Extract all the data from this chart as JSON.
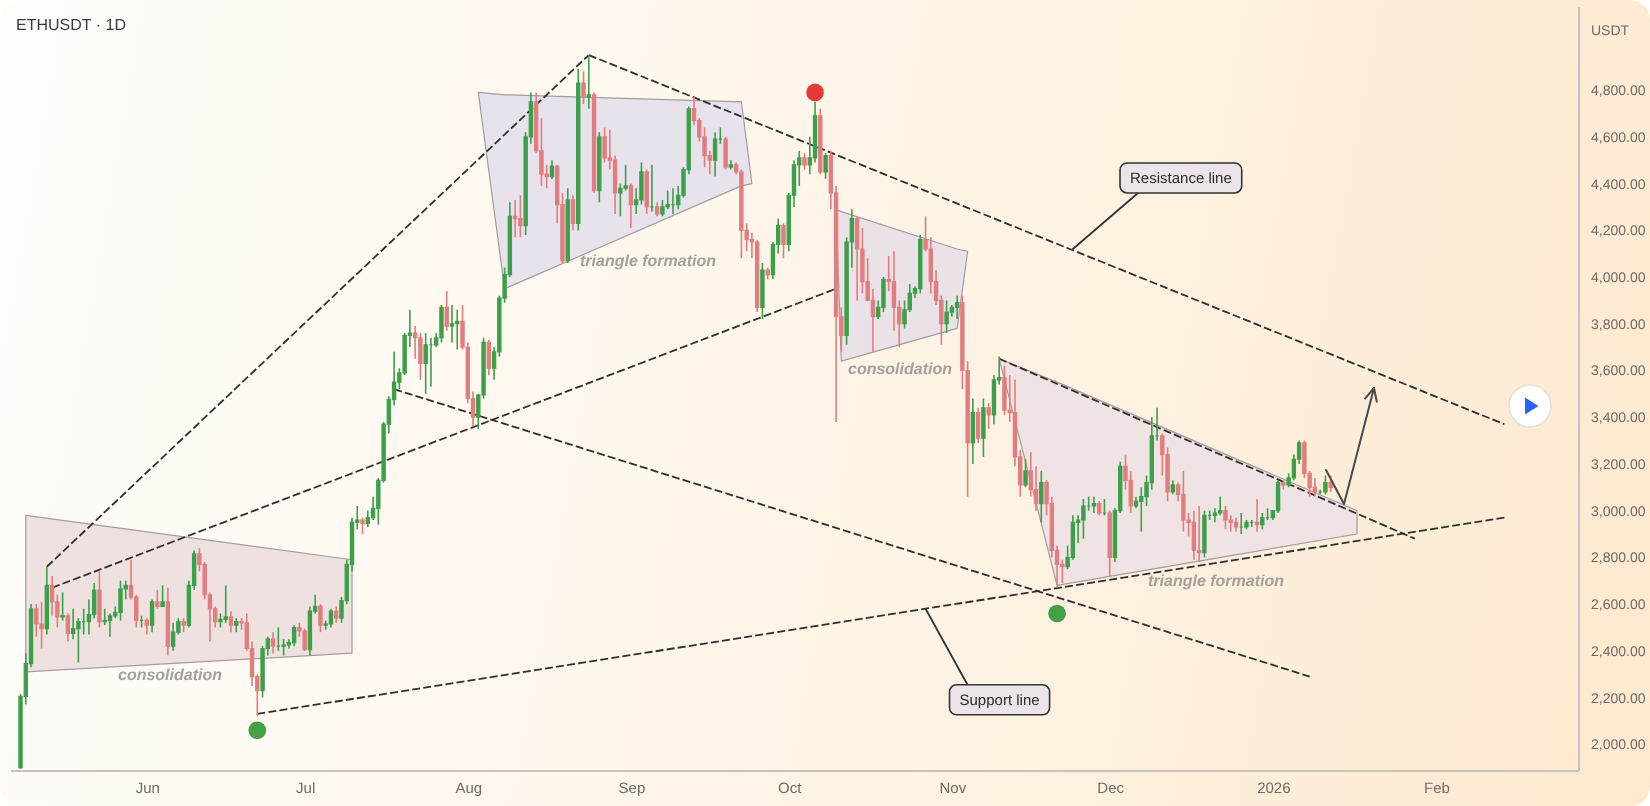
{
  "chart_data": {
    "type": "candlestick",
    "title": "ETHUSDT · 1D",
    "ylabel": "USDT",
    "x": [
      "2025-05-08",
      "2025-05-09",
      "2025-05-10",
      "2025-05-11",
      "2025-05-12",
      "2025-05-13",
      "2025-05-14",
      "2025-05-15",
      "2025-05-16",
      "2025-05-17",
      "2025-05-18",
      "2025-05-19",
      "2025-05-20",
      "2025-05-21",
      "2025-05-22",
      "2025-05-23",
      "2025-05-24",
      "2025-05-25",
      "2025-05-26",
      "2025-05-27",
      "2025-05-28",
      "2025-05-29",
      "2025-05-30",
      "2025-05-31",
      "2025-06-01",
      "2025-06-02",
      "2025-06-03",
      "2025-06-04",
      "2025-06-05",
      "2025-06-06",
      "2025-06-07",
      "2025-06-08",
      "2025-06-09",
      "2025-06-10",
      "2025-06-11",
      "2025-06-12",
      "2025-06-13",
      "2025-06-14",
      "2025-06-15",
      "2025-06-16",
      "2025-06-17",
      "2025-06-18",
      "2025-06-19",
      "2025-06-20",
      "2025-06-21",
      "2025-06-22",
      "2025-06-23",
      "2025-06-24",
      "2025-06-25",
      "2025-06-26",
      "2025-06-27",
      "2025-06-28",
      "2025-06-29",
      "2025-06-30",
      "2025-07-01",
      "2025-07-02",
      "2025-07-03",
      "2025-07-04",
      "2025-07-05",
      "2025-07-06",
      "2025-07-07",
      "2025-07-08",
      "2025-07-09",
      "2025-07-10",
      "2025-07-11",
      "2025-07-12",
      "2025-07-13",
      "2025-07-14",
      "2025-07-15",
      "2025-07-16",
      "2025-07-17",
      "2025-07-18",
      "2025-07-19",
      "2025-07-20",
      "2025-07-21",
      "2025-07-22",
      "2025-07-23",
      "2025-07-24",
      "2025-07-25",
      "2025-07-26",
      "2025-07-27",
      "2025-07-28",
      "2025-07-29",
      "2025-07-30",
      "2025-07-31",
      "2025-08-01",
      "2025-08-02",
      "2025-08-03",
      "2025-08-04",
      "2025-08-05",
      "2025-08-06",
      "2025-08-07",
      "2025-08-08",
      "2025-08-09",
      "2025-08-10",
      "2025-08-11",
      "2025-08-12",
      "2025-08-13",
      "2025-08-14",
      "2025-08-15",
      "2025-08-16",
      "2025-08-17",
      "2025-08-18",
      "2025-08-19",
      "2025-08-20",
      "2025-08-21",
      "2025-08-22",
      "2025-08-23",
      "2025-08-24",
      "2025-08-25",
      "2025-08-26",
      "2025-08-27",
      "2025-08-28",
      "2025-08-29",
      "2025-08-30",
      "2025-08-31",
      "2025-09-01",
      "2025-09-02",
      "2025-09-03",
      "2025-09-04",
      "2025-09-05",
      "2025-09-06",
      "2025-09-07",
      "2025-09-08",
      "2025-09-09",
      "2025-09-10",
      "2025-09-11",
      "2025-09-12",
      "2025-09-13",
      "2025-09-14",
      "2025-09-15",
      "2025-09-16",
      "2025-09-17",
      "2025-09-18",
      "2025-09-19",
      "2025-09-20",
      "2025-09-21",
      "2025-09-22",
      "2025-09-23",
      "2025-09-24",
      "2025-09-25",
      "2025-09-26",
      "2025-09-27",
      "2025-09-28",
      "2025-09-29",
      "2025-09-30",
      "2025-10-01",
      "2025-10-02",
      "2025-10-03",
      "2025-10-04",
      "2025-10-05",
      "2025-10-06",
      "2025-10-07",
      "2025-10-08",
      "2025-10-09",
      "2025-10-10",
      "2025-10-11",
      "2025-10-12",
      "2025-10-13",
      "2025-10-14",
      "2025-10-15",
      "2025-10-16",
      "2025-10-17",
      "2025-10-18",
      "2025-10-19",
      "2025-10-20",
      "2025-10-21",
      "2025-10-22",
      "2025-10-23",
      "2025-10-24",
      "2025-10-25",
      "2025-10-26",
      "2025-10-27",
      "2025-10-28",
      "2025-10-29",
      "2025-10-30",
      "2025-10-31",
      "2025-11-01",
      "2025-11-02",
      "2025-11-03",
      "2025-11-04",
      "2025-11-05",
      "2025-11-06",
      "2025-11-07",
      "2025-11-08",
      "2025-11-09",
      "2025-11-10",
      "2025-11-11",
      "2025-11-12",
      "2025-11-13",
      "2025-11-14",
      "2025-11-15",
      "2025-11-16",
      "2025-11-17",
      "2025-11-18",
      "2025-11-19",
      "2025-11-20",
      "2025-11-21",
      "2025-11-22",
      "2025-11-23",
      "2025-11-24",
      "2025-11-25",
      "2025-11-26",
      "2025-11-27",
      "2025-11-28",
      "2025-11-29",
      "2025-11-30",
      "2025-12-01",
      "2025-12-02",
      "2025-12-03",
      "2025-12-04",
      "2025-12-05",
      "2025-12-06",
      "2025-12-07",
      "2025-12-08",
      "2025-12-09",
      "2025-12-10",
      "2025-12-11",
      "2025-12-12",
      "2025-12-13",
      "2025-12-14",
      "2025-12-15",
      "2025-12-16",
      "2025-12-17",
      "2025-12-18",
      "2025-12-19",
      "2025-12-20",
      "2025-12-21",
      "2025-12-22",
      "2025-12-23",
      "2025-12-24",
      "2025-12-25",
      "2025-12-26",
      "2025-12-27",
      "2025-12-28",
      "2025-12-29",
      "2025-12-30",
      "2025-12-31",
      "2026-01-01",
      "2026-01-02",
      "2026-01-03",
      "2026-01-04",
      "2026-01-05",
      "2026-01-06",
      "2026-01-07",
      "2026-01-08",
      "2026-01-09",
      "2026-01-10",
      "2026-01-11",
      "2026-01-12"
    ],
    "ohlc": [
      [
        1900,
        2215,
        1895,
        2205
      ],
      [
        2205,
        2390,
        2170,
        2345
      ],
      [
        2345,
        2600,
        2330,
        2580
      ],
      [
        2580,
        2600,
        2460,
        2515
      ],
      [
        2515,
        2610,
        2410,
        2495
      ],
      [
        2495,
        2760,
        2470,
        2680
      ],
      [
        2680,
        2720,
        2550,
        2610
      ],
      [
        2610,
        2640,
        2500,
        2545
      ],
      [
        2545,
        2650,
        2530,
        2550
      ],
      [
        2550,
        2560,
        2440,
        2475
      ],
      [
        2475,
        2580,
        2450,
        2495
      ],
      [
        2495,
        2540,
        2350,
        2525
      ],
      [
        2525,
        2580,
        2470,
        2525
      ],
      [
        2525,
        2620,
        2470,
        2555
      ],
      [
        2555,
        2690,
        2540,
        2660
      ],
      [
        2660,
        2740,
        2500,
        2525
      ],
      [
        2525,
        2580,
        2510,
        2530
      ],
      [
        2530,
        2560,
        2460,
        2550
      ],
      [
        2550,
        2590,
        2540,
        2565
      ],
      [
        2565,
        2700,
        2530,
        2665
      ],
      [
        2665,
        2700,
        2620,
        2680
      ],
      [
        2680,
        2790,
        2620,
        2630
      ],
      [
        2630,
        2640,
        2500,
        2530
      ],
      [
        2530,
        2550,
        2500,
        2530
      ],
      [
        2530,
        2540,
        2470,
        2510
      ],
      [
        2510,
        2620,
        2480,
        2610
      ],
      [
        2610,
        2660,
        2580,
        2590
      ],
      [
        2590,
        2680,
        2590,
        2610
      ],
      [
        2610,
        2670,
        2380,
        2420
      ],
      [
        2420,
        2520,
        2400,
        2480
      ],
      [
        2480,
        2540,
        2470,
        2525
      ],
      [
        2525,
        2540,
        2480,
        2510
      ],
      [
        2510,
        2700,
        2500,
        2680
      ],
      [
        2680,
        2830,
        2660,
        2815
      ],
      [
        2815,
        2840,
        2740,
        2770
      ],
      [
        2770,
        2780,
        2620,
        2640
      ],
      [
        2640,
        2650,
        2440,
        2580
      ],
      [
        2580,
        2590,
        2500,
        2525
      ],
      [
        2525,
        2560,
        2500,
        2535
      ],
      [
        2535,
        2680,
        2520,
        2545
      ],
      [
        2545,
        2570,
        2480,
        2510
      ],
      [
        2510,
        2540,
        2480,
        2525
      ],
      [
        2525,
        2540,
        2490,
        2520
      ],
      [
        2520,
        2560,
        2400,
        2410
      ],
      [
        2410,
        2440,
        2250,
        2290
      ],
      [
        2290,
        2300,
        2120,
        2230
      ],
      [
        2230,
        2420,
        2200,
        2410
      ],
      [
        2410,
        2460,
        2380,
        2450
      ],
      [
        2450,
        2480,
        2390,
        2420
      ],
      [
        2420,
        2500,
        2400,
        2420
      ],
      [
        2420,
        2450,
        2380,
        2425
      ],
      [
        2425,
        2450,
        2410,
        2435
      ],
      [
        2435,
        2510,
        2420,
        2500
      ],
      [
        2500,
        2520,
        2460,
        2485
      ],
      [
        2485,
        2495,
        2400,
        2405
      ],
      [
        2405,
        2590,
        2380,
        2570
      ],
      [
        2570,
        2640,
        2560,
        2590
      ],
      [
        2590,
        2600,
        2480,
        2510
      ],
      [
        2510,
        2530,
        2490,
        2515
      ],
      [
        2515,
        2580,
        2500,
        2570
      ],
      [
        2570,
        2590,
        2520,
        2540
      ],
      [
        2540,
        2630,
        2520,
        2615
      ],
      [
        2615,
        2790,
        2600,
        2770
      ],
      [
        2770,
        2970,
        2740,
        2950
      ],
      [
        2950,
        3020,
        2920,
        2960
      ],
      [
        2960,
        2970,
        2900,
        2945
      ],
      [
        2945,
        3000,
        2930,
        2970
      ],
      [
        2970,
        3060,
        2960,
        3010
      ],
      [
        3010,
        3140,
        2940,
        3130
      ],
      [
        3130,
        3380,
        3120,
        3370
      ],
      [
        3370,
        3490,
        3330,
        3475
      ],
      [
        3475,
        3680,
        3450,
        3550
      ],
      [
        3550,
        3610,
        3520,
        3590
      ],
      [
        3590,
        3760,
        3580,
        3750
      ],
      [
        3750,
        3860,
        3700,
        3760
      ],
      [
        3760,
        3790,
        3650,
        3740
      ],
      [
        3740,
        3760,
        3560,
        3630
      ],
      [
        3630,
        3760,
        3500,
        3710
      ],
      [
        3710,
        3740,
        3530,
        3710
      ],
      [
        3710,
        3760,
        3700,
        3740
      ],
      [
        3740,
        3880,
        3720,
        3870
      ],
      [
        3870,
        3940,
        3770,
        3790
      ],
      [
        3790,
        3880,
        3720,
        3800
      ],
      [
        3800,
        3860,
        3690,
        3810
      ],
      [
        3810,
        3880,
        3690,
        3700
      ],
      [
        3700,
        3720,
        3460,
        3480
      ],
      [
        3480,
        3510,
        3360,
        3400
      ],
      [
        3400,
        3500,
        3350,
        3495
      ],
      [
        3495,
        3740,
        3480,
        3720
      ],
      [
        3720,
        3730,
        3580,
        3610
      ],
      [
        3610,
        3700,
        3560,
        3680
      ],
      [
        3680,
        3920,
        3660,
        3910
      ],
      [
        3910,
        4040,
        3890,
        4010
      ],
      [
        4010,
        4320,
        4000,
        4260
      ],
      [
        4260,
        4330,
        4170,
        4250
      ],
      [
        4250,
        4350,
        4170,
        4220
      ],
      [
        4220,
        4620,
        4180,
        4600
      ],
      [
        4600,
        4790,
        4570,
        4750
      ],
      [
        4750,
        4790,
        4530,
        4540
      ],
      [
        4540,
        4680,
        4390,
        4440
      ],
      [
        4440,
        4480,
        4380,
        4430
      ],
      [
        4430,
        4500,
        4420,
        4475
      ],
      [
        4475,
        4480,
        4230,
        4310
      ],
      [
        4310,
        4360,
        4060,
        4070
      ],
      [
        4070,
        4380,
        4060,
        4330
      ],
      [
        4330,
        4350,
        4200,
        4230
      ],
      [
        4230,
        4890,
        4200,
        4830
      ],
      [
        4830,
        4880,
        4740,
        4770
      ],
      [
        4770,
        4950,
        4720,
        4780
      ],
      [
        4780,
        4790,
        4360,
        4370
      ],
      [
        4370,
        4620,
        4320,
        4600
      ],
      [
        4600,
        4640,
        4490,
        4510
      ],
      [
        4510,
        4630,
        4460,
        4500
      ],
      [
        4500,
        4520,
        4270,
        4360
      ],
      [
        4360,
        4400,
        4260,
        4380
      ],
      [
        4380,
        4480,
        4370,
        4390
      ],
      [
        4390,
        4400,
        4210,
        4310
      ],
      [
        4310,
        4380,
        4270,
        4330
      ],
      [
        4330,
        4490,
        4310,
        4450
      ],
      [
        4450,
        4460,
        4270,
        4300
      ],
      [
        4300,
        4480,
        4280,
        4300
      ],
      [
        4300,
        4320,
        4260,
        4270
      ],
      [
        4270,
        4330,
        4260,
        4300
      ],
      [
        4300,
        4370,
        4290,
        4310
      ],
      [
        4310,
        4380,
        4270,
        4310
      ],
      [
        4310,
        4390,
        4290,
        4350
      ],
      [
        4350,
        4470,
        4340,
        4460
      ],
      [
        4460,
        4730,
        4440,
        4720
      ],
      [
        4720,
        4770,
        4650,
        4670
      ],
      [
        4670,
        4680,
        4580,
        4600
      ],
      [
        4600,
        4640,
        4470,
        4520
      ],
      [
        4520,
        4540,
        4440,
        4500
      ],
      [
        4500,
        4620,
        4430,
        4590
      ],
      [
        4590,
        4640,
        4570,
        4590
      ],
      [
        4590,
        4600,
        4460,
        4470
      ],
      [
        4470,
        4500,
        4460,
        4480
      ],
      [
        4480,
        4490,
        4440,
        4450
      ],
      [
        4450,
        4460,
        4080,
        4200
      ],
      [
        4200,
        4230,
        4110,
        4160
      ],
      [
        4160,
        4190,
        4080,
        4150
      ],
      [
        4150,
        4160,
        3850,
        3870
      ],
      [
        3870,
        4060,
        3820,
        4030
      ],
      [
        4030,
        4040,
        3990,
        4010
      ],
      [
        4010,
        4150,
        3990,
        4140
      ],
      [
        4140,
        4250,
        4100,
        4220
      ],
      [
        4220,
        4230,
        4080,
        4140
      ],
      [
        4140,
        4360,
        4110,
        4350
      ],
      [
        4350,
        4500,
        4300,
        4480
      ],
      [
        4480,
        4540,
        4390,
        4510
      ],
      [
        4510,
        4530,
        4460,
        4480
      ],
      [
        4480,
        4600,
        4440,
        4510
      ],
      [
        4510,
        4750,
        4490,
        4690
      ],
      [
        4690,
        4720,
        4440,
        4450
      ],
      [
        4450,
        4530,
        4420,
        4520
      ],
      [
        4520,
        4540,
        4290,
        4360
      ],
      [
        4360,
        4390,
        3380,
        3830
      ],
      [
        3830,
        3870,
        3680,
        3750
      ],
      [
        3750,
        4170,
        3710,
        4150
      ],
      [
        4150,
        4290,
        4040,
        4250
      ],
      [
        4250,
        4260,
        3900,
        4120
      ],
      [
        4120,
        4210,
        3930,
        3980
      ],
      [
        3980,
        4080,
        3900,
        3900
      ],
      [
        3900,
        3950,
        3680,
        3830
      ],
      [
        3830,
        3900,
        3820,
        3870
      ],
      [
        3870,
        4000,
        3850,
        3990
      ],
      [
        3990,
        4090,
        3940,
        3980
      ],
      [
        3980,
        4110,
        3770,
        3870
      ],
      [
        3870,
        3900,
        3700,
        3800
      ],
      [
        3800,
        3900,
        3780,
        3860
      ],
      [
        3860,
        3970,
        3850,
        3930
      ],
      [
        3930,
        3960,
        3910,
        3950
      ],
      [
        3950,
        4180,
        3930,
        4160
      ],
      [
        4160,
        4260,
        4110,
        4120
      ],
      [
        4120,
        4170,
        3930,
        3980
      ],
      [
        3980,
        4030,
        3880,
        3900
      ],
      [
        3900,
        3920,
        3710,
        3800
      ],
      [
        3800,
        3900,
        3760,
        3850
      ],
      [
        3850,
        3880,
        3830,
        3870
      ],
      [
        3870,
        3920,
        3820,
        3890
      ],
      [
        3890,
        3920,
        3520,
        3600
      ],
      [
        3600,
        3640,
        3060,
        3290
      ],
      [
        3290,
        3480,
        3200,
        3420
      ],
      [
        3420,
        3440,
        3290,
        3310
      ],
      [
        3310,
        3480,
        3230,
        3440
      ],
      [
        3440,
        3460,
        3350,
        3410
      ],
      [
        3410,
        3580,
        3370,
        3560
      ],
      [
        3560,
        3660,
        3540,
        3570
      ],
      [
        3570,
        3620,
        3410,
        3430
      ],
      [
        3430,
        3580,
        3380,
        3420
      ],
      [
        3420,
        3560,
        3190,
        3230
      ],
      [
        3230,
        3260,
        3060,
        3110
      ],
      [
        3110,
        3220,
        3100,
        3170
      ],
      [
        3170,
        3250,
        3060,
        3090
      ],
      [
        3090,
        3190,
        3000,
        3030
      ],
      [
        3030,
        3170,
        2950,
        3120
      ],
      [
        3120,
        3130,
        2980,
        3030
      ],
      [
        3030,
        3060,
        2800,
        2830
      ],
      [
        2830,
        2850,
        2670,
        2770
      ],
      [
        2770,
        2790,
        2690,
        2760
      ],
      [
        2760,
        2850,
        2750,
        2800
      ],
      [
        2800,
        2980,
        2790,
        2950
      ],
      [
        2950,
        2980,
        2860,
        2960
      ],
      [
        2960,
        3050,
        2880,
        3020
      ],
      [
        3020,
        3060,
        3000,
        3020
      ],
      [
        3020,
        3060,
        2990,
        3030
      ],
      [
        3030,
        3040,
        2980,
        2990
      ],
      [
        2990,
        3050,
        2980,
        2990
      ],
      [
        2990,
        3000,
        2720,
        2800
      ],
      [
        2800,
        3010,
        2780,
        3000
      ],
      [
        3000,
        3210,
        2990,
        3190
      ],
      [
        3190,
        3240,
        3090,
        3130
      ],
      [
        3130,
        3170,
        2990,
        3020
      ],
      [
        3020,
        3060,
        3010,
        3040
      ],
      [
        3040,
        3100,
        2910,
        3060
      ],
      [
        3060,
        3150,
        3020,
        3120
      ],
      [
        3120,
        3400,
        3090,
        3320
      ],
      [
        3320,
        3440,
        3300,
        3320
      ],
      [
        3320,
        3330,
        3150,
        3240
      ],
      [
        3240,
        3270,
        3040,
        3080
      ],
      [
        3080,
        3130,
        3070,
        3110
      ],
      [
        3110,
        3120,
        3040,
        3070
      ],
      [
        3070,
        3170,
        2910,
        2960
      ],
      [
        2960,
        2990,
        2890,
        2950
      ],
      [
        2950,
        3000,
        2790,
        2830
      ],
      [
        2830,
        3020,
        2780,
        2820
      ],
      [
        2820,
        3000,
        2800,
        2980
      ],
      [
        2980,
        3000,
        2960,
        2980
      ],
      [
        2980,
        3010,
        2950,
        2990
      ],
      [
        2990,
        3060,
        2980,
        3000
      ],
      [
        3000,
        3020,
        2920,
        2960
      ],
      [
        2960,
        2980,
        2910,
        2950
      ],
      [
        2950,
        2970,
        2910,
        2930
      ],
      [
        2930,
        2990,
        2900,
        2930
      ],
      [
        2930,
        2960,
        2920,
        2950
      ],
      [
        2950,
        2960,
        2930,
        2950
      ],
      [
        2950,
        3050,
        2910,
        2940
      ],
      [
        2940,
        2990,
        2920,
        2970
      ],
      [
        2970,
        3010,
        2960,
        2970
      ],
      [
        2970,
        3000,
        2960,
        3000
      ],
      [
        3000,
        3130,
        2990,
        3120
      ],
      [
        3120,
        3130,
        3090,
        3110
      ],
      [
        3110,
        3160,
        3100,
        3140
      ],
      [
        3140,
        3240,
        3130,
        3220
      ],
      [
        3220,
        3300,
        3200,
        3290
      ],
      [
        3290,
        3300,
        3140,
        3160
      ],
      [
        3160,
        3170,
        3060,
        3100
      ],
      [
        3100,
        3140,
        3060,
        3080
      ],
      [
        3080,
        3090,
        3070,
        3080
      ],
      [
        3080,
        3150,
        3070,
        3120
      ],
      [
        3120,
        3150,
        3080,
        3100
      ]
    ],
    "colors": [
      "#3c9f4a",
      "#3c9f4a",
      "#3c9f4a",
      "#e27d7f",
      "#e27d7f",
      "#3c9f4a",
      "#e27d7f",
      "#e27d7f",
      "#3c9f4a",
      "#e27d7f",
      "#3c9f4a",
      "#3c9f4a",
      "#3c9f4a",
      "#3c9f4a",
      "#3c9f4a",
      "#e27d7f",
      "#3c9f4a",
      "#3c9f4a",
      "#3c9f4a",
      "#3c9f4a",
      "#3c9f4a",
      "#e27d7f",
      "#e27d7f",
      "#3c9f4a",
      "#e27d7f",
      "#3c9f4a",
      "#e27d7f",
      "#3c9f4a",
      "#e27d7f",
      "#3c9f4a",
      "#3c9f4a",
      "#e27d7f",
      "#3c9f4a",
      "#3c9f4a",
      "#e27d7f",
      "#e27d7f",
      "#e27d7f",
      "#e27d7f",
      "#3c9f4a",
      "#3c9f4a",
      "#e27d7f",
      "#3c9f4a",
      "#e27d7f",
      "#e27d7f",
      "#e27d7f",
      "#e27d7f",
      "#3c9f4a",
      "#3c9f4a",
      "#e27d7f",
      "#3c9f4a",
      "#3c9f4a",
      "#3c9f4a",
      "#3c9f4a",
      "#e27d7f",
      "#e27d7f",
      "#3c9f4a",
      "#3c9f4a",
      "#e27d7f",
      "#3c9f4a",
      "#3c9f4a",
      "#e27d7f",
      "#3c9f4a",
      "#3c9f4a",
      "#3c9f4a",
      "#3c9f4a",
      "#e27d7f",
      "#3c9f4a",
      "#3c9f4a",
      "#3c9f4a",
      "#3c9f4a",
      "#3c9f4a",
      "#3c9f4a",
      "#3c9f4a",
      "#3c9f4a",
      "#3c9f4a",
      "#e27d7f",
      "#e27d7f",
      "#3c9f4a",
      "#3c9f4a",
      "#3c9f4a",
      "#3c9f4a",
      "#e27d7f",
      "#3c9f4a",
      "#3c9f4a",
      "#e27d7f",
      "#e27d7f",
      "#e27d7f",
      "#3c9f4a",
      "#3c9f4a",
      "#e27d7f",
      "#3c9f4a",
      "#3c9f4a",
      "#3c9f4a",
      "#3c9f4a",
      "#e27d7f",
      "#e27d7f",
      "#3c9f4a",
      "#3c9f4a",
      "#e27d7f",
      "#e27d7f",
      "#e27d7f",
      "#3c9f4a",
      "#e27d7f",
      "#e27d7f",
      "#3c9f4a",
      "#e27d7f",
      "#3c9f4a",
      "#e27d7f",
      "#3c9f4a",
      "#e27d7f",
      "#3c9f4a",
      "#e27d7f",
      "#e27d7f",
      "#e27d7f",
      "#3c9f4a",
      "#3c9f4a",
      "#e27d7f",
      "#3c9f4a",
      "#3c9f4a",
      "#e27d7f",
      "#3c9f4a",
      "#e27d7f",
      "#3c9f4a",
      "#3c9f4a",
      "#3c9f4a",
      "#3c9f4a",
      "#3c9f4a",
      "#3c9f4a",
      "#e27d7f",
      "#e27d7f",
      "#e27d7f",
      "#e27d7f",
      "#3c9f4a",
      "#3c9f4a",
      "#e27d7f",
      "#3c9f4a",
      "#e27d7f",
      "#e27d7f",
      "#e27d7f",
      "#e27d7f",
      "#e27d7f",
      "#3c9f4a",
      "#e27d7f",
      "#3c9f4a",
      "#3c9f4a",
      "#e27d7f",
      "#3c9f4a",
      "#3c9f4a",
      "#3c9f4a",
      "#e27d7f",
      "#3c9f4a",
      "#3c9f4a",
      "#e27d7f",
      "#3c9f4a",
      "#e27d7f",
      "#e27d7f",
      "#e27d7f",
      "#3c9f4a",
      "#3c9f4a",
      "#e27d7f",
      "#e27d7f",
      "#e27d7f",
      "#e27d7f",
      "#3c9f4a",
      "#3c9f4a",
      "#e27d7f",
      "#e27d7f",
      "#e27d7f",
      "#3c9f4a",
      "#3c9f4a",
      "#3c9f4a",
      "#3c9f4a",
      "#e27d7f",
      "#e27d7f",
      "#e27d7f",
      "#e27d7f",
      "#3c9f4a",
      "#3c9f4a",
      "#3c9f4a",
      "#e27d7f",
      "#e27d7f",
      "#3c9f4a",
      "#e27d7f",
      "#3c9f4a",
      "#e27d7f",
      "#3c9f4a",
      "#3c9f4a",
      "#e27d7f",
      "#e27d7f",
      "#e27d7f",
      "#e27d7f",
      "#3c9f4a",
      "#e27d7f",
      "#e27d7f",
      "#3c9f4a",
      "#e27d7f",
      "#e27d7f",
      "#e27d7f",
      "#e27d7f",
      "#3c9f4a",
      "#3c9f4a",
      "#3c9f4a",
      "#3c9f4a",
      "#3c9f4a",
      "#3c9f4a",
      "#e27d7f",
      "#3c9f4a",
      "#e27d7f",
      "#3c9f4a",
      "#3c9f4a",
      "#e27d7f",
      "#e27d7f",
      "#3c9f4a",
      "#3c9f4a",
      "#3c9f4a",
      "#3c9f4a",
      "#3c9f4a",
      "#e27d7f",
      "#e27d7f",
      "#3c9f4a",
      "#e27d7f",
      "#e27d7f",
      "#e27d7f",
      "#e27d7f",
      "#e27d7f",
      "#3c9f4a",
      "#3c9f4a",
      "#3c9f4a",
      "#3c9f4a",
      "#e27d7f",
      "#e27d7f",
      "#e27d7f",
      "#3c9f4a",
      "#3c9f4a",
      "#3c9f4a",
      "#e27d7f",
      "#3c9f4a",
      "#3c9f4a",
      "#3c9f4a",
      "#3c9f4a",
      "#e27d7f",
      "#3c9f4a",
      "#3c9f4a",
      "#3c9f4a",
      "#e27d7f",
      "#e27d7f",
      "#e27d7f",
      "#3c9f4a",
      "#3c9f4a",
      "#e27d7f"
    ],
    "xlim": [
      "2025-05-06",
      "2026-02-28"
    ],
    "ylim": [
      1890,
      5160
    ],
    "xticks": [
      {
        "value": "2025-06-01",
        "label": "Jun"
      },
      {
        "value": "2025-07-01",
        "label": "Jul"
      },
      {
        "value": "2025-08-01",
        "label": "Aug"
      },
      {
        "value": "2025-09-01",
        "label": "Sep"
      },
      {
        "value": "2025-10-01",
        "label": "Oct"
      },
      {
        "value": "2025-11-01",
        "label": "Nov"
      },
      {
        "value": "2025-12-01",
        "label": "Dec"
      },
      {
        "value": "2026-01-01",
        "label": "2026"
      },
      {
        "value": "2026-02-01",
        "label": "Feb"
      }
    ],
    "yticks": [
      {
        "value": 2000,
        "label": "2,000.00"
      },
      {
        "value": 2200,
        "label": "2,200.00"
      },
      {
        "value": 2400,
        "label": "2,400.00"
      },
      {
        "value": 2600,
        "label": "2,600.00"
      },
      {
        "value": 2800,
        "label": "2,800.00"
      },
      {
        "value": 3000,
        "label": "3,000.00"
      },
      {
        "value": 3200,
        "label": "3,200.00"
      },
      {
        "value": 3400,
        "label": "3,400.00"
      },
      {
        "value": 3600,
        "label": "3,600.00"
      },
      {
        "value": 3800,
        "label": "3,800.00"
      },
      {
        "value": 4000,
        "label": "4,000.00"
      },
      {
        "value": 4200,
        "label": "4,200.00"
      },
      {
        "value": 4400,
        "label": "4,400.00"
      },
      {
        "value": 4600,
        "label": "4,600.00"
      },
      {
        "value": 4800,
        "label": "4,800.00"
      }
    ],
    "series": [
      {
        "type": "line",
        "color": "#2f2f2f",
        "line_style": "dashed",
        "x": [
          "2025-05-13",
          "2025-08-24"
        ],
        "values": [
          2760,
          4950
        ]
      },
      {
        "type": "line",
        "color": "#2f2f2f",
        "line_style": "dashed",
        "x": [
          "2025-08-24",
          "2026-02-14"
        ],
        "values": [
          4950,
          3370
        ]
      },
      {
        "type": "line",
        "color": "#2f2f2f",
        "line_style": "dashed",
        "x": [
          "2025-05-14",
          "2025-10-10"
        ],
        "values": [
          2670,
          3950
        ]
      },
      {
        "type": "line",
        "color": "#2f2f2f",
        "line_style": "dashed",
        "x": [
          "2025-07-18",
          "2026-01-08"
        ],
        "values": [
          3520,
          2290
        ]
      },
      {
        "type": "line",
        "color": "#2f2f2f",
        "line_style": "dashed",
        "x": [
          "2025-06-22",
          "2026-02-14"
        ],
        "values": [
          2130,
          2970
        ]
      },
      {
        "type": "line",
        "color": "#2f2f2f",
        "line_style": "dashed",
        "x": [
          "2025-11-10",
          "2026-01-28"
        ],
        "values": [
          3650,
          2880
        ]
      },
      {
        "type": "line",
        "color": "#eee1df",
        "x": [
          "2025-05-09",
          "2025-07-10"
        ],
        "values": [
          null,
          null
        ],
        "lower": [
          2310,
          2390
        ],
        "upper": [
          2980,
          2790
        ]
      },
      {
        "type": "line",
        "color": "#e8e2ec",
        "x": [
          "2025-08-03",
          "2025-08-08",
          "2025-09-22",
          "2025-09-24"
        ],
        "values": [
          null,
          null,
          null,
          null
        ],
        "lower": [
          4790,
          3950,
          4390,
          4400
        ],
        "upper": [
          4790,
          4780,
          4750,
          4400
        ]
      },
      {
        "type": "line",
        "color": "#ebe2e7",
        "x": [
          "2025-10-10",
          "2025-10-11",
          "2025-11-02",
          "2025-11-04"
        ],
        "values": [
          null,
          null,
          null,
          null
        ],
        "lower": [
          4290,
          3640,
          3780,
          4110
        ],
        "upper": [
          4290,
          4280,
          4120,
          4110
        ]
      },
      {
        "type": "line",
        "color": "#f0e3e3",
        "x": [
          "2025-11-10",
          "2025-11-21",
          "2026-01-17"
        ],
        "values": [
          null,
          null,
          null
        ],
        "lower": [
          3650,
          2680,
          2900
        ],
        "upper": [
          3650,
          3550,
          3000
        ]
      },
      {
        "type": "scatter",
        "color": "#e53935",
        "marker": "circle",
        "x": [
          "2025-10-06"
        ],
        "values": [
          4790
        ]
      },
      {
        "type": "scatter",
        "color": "#43a047",
        "marker": "circle",
        "x": [
          "2025-06-22",
          "2025-11-21"
        ],
        "values": [
          2060,
          2560
        ]
      }
    ],
    "annotations": [
      "consolidation",
      "triangle formation",
      "consolidation",
      "triangle formation",
      {
        "text": "Resistance line",
        "x": "2025-11-24",
        "y": 4120
      },
      {
        "text": "Support line",
        "x": "2025-10-27",
        "y": 2580
      }
    ]
  }
}
